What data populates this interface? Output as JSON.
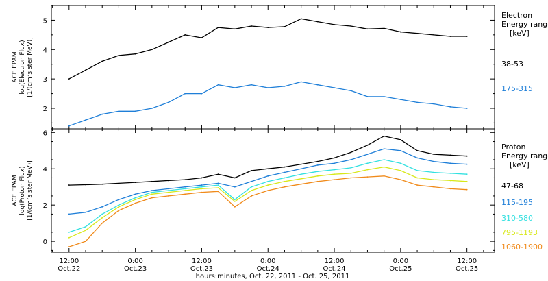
{
  "chart_data": [
    {
      "type": "line",
      "panel": "electron",
      "ylabel_lines": [
        "ACE EPAM",
        "log(Electron Flux)",
        "[1/(cm²s ster MeV)]"
      ],
      "ylim": [
        1.3,
        5.5
      ],
      "yticks": [
        2,
        3,
        4,
        5
      ],
      "legend_title": [
        "Electron",
        "Energy range",
        "[keV]"
      ],
      "x": [
        12,
        15,
        18,
        21,
        24,
        27,
        30,
        33,
        36,
        39,
        42,
        45,
        48,
        51,
        54,
        57,
        60,
        63,
        66,
        69,
        72,
        75,
        78,
        81,
        84
      ],
      "series": [
        {
          "name": "38-53",
          "color": "#000000",
          "values": [
            3.0,
            3.3,
            3.6,
            3.8,
            3.85,
            4.0,
            4.25,
            4.5,
            4.4,
            4.75,
            4.7,
            4.8,
            4.75,
            4.78,
            5.05,
            4.95,
            4.85,
            4.8,
            4.7,
            4.72,
            4.6,
            4.55,
            4.5,
            4.45,
            4.45
          ]
        },
        {
          "name": "175-315",
          "color": "#1f7fd8",
          "values": [
            1.4,
            1.6,
            1.8,
            1.9,
            1.9,
            2.0,
            2.2,
            2.5,
            2.5,
            2.8,
            2.7,
            2.8,
            2.7,
            2.75,
            2.9,
            2.8,
            2.7,
            2.6,
            2.4,
            2.4,
            2.3,
            2.2,
            2.15,
            2.05,
            2.0
          ]
        }
      ]
    },
    {
      "type": "line",
      "panel": "proton",
      "ylabel_lines": [
        "ACE EPAM",
        "log(Proton Flux)",
        "[1/(cm²s ster MeV)]"
      ],
      "ylim": [
        -0.6,
        6.2
      ],
      "yticks": [
        0,
        2,
        4,
        6
      ],
      "legend_title": [
        "Proton",
        "Energy range",
        "[keV]"
      ],
      "x": [
        12,
        15,
        18,
        21,
        24,
        27,
        30,
        33,
        36,
        39,
        42,
        45,
        48,
        51,
        54,
        57,
        60,
        63,
        66,
        69,
        72,
        75,
        78,
        81,
        84
      ],
      "series": [
        {
          "name": "47-68",
          "color": "#000000",
          "values": [
            3.1,
            3.12,
            3.15,
            3.2,
            3.25,
            3.3,
            3.35,
            3.4,
            3.5,
            3.7,
            3.5,
            3.9,
            4.0,
            4.1,
            4.25,
            4.4,
            4.6,
            4.9,
            5.3,
            5.8,
            5.6,
            5.0,
            4.8,
            4.75,
            4.7
          ]
        },
        {
          "name": "115-195",
          "color": "#1f7fd8",
          "values": [
            1.5,
            1.6,
            1.9,
            2.3,
            2.6,
            2.8,
            2.9,
            3.0,
            3.1,
            3.2,
            3.0,
            3.3,
            3.6,
            3.8,
            4.0,
            4.2,
            4.3,
            4.5,
            4.8,
            5.1,
            5.0,
            4.6,
            4.4,
            4.3,
            4.25
          ]
        },
        {
          "name": "310-580",
          "color": "#33e0e0",
          "values": [
            0.5,
            0.8,
            1.5,
            2.0,
            2.4,
            2.7,
            2.8,
            2.9,
            3.0,
            3.1,
            2.3,
            3.0,
            3.3,
            3.5,
            3.7,
            3.85,
            3.95,
            4.05,
            4.3,
            4.5,
            4.3,
            3.9,
            3.8,
            3.75,
            3.7
          ]
        },
        {
          "name": "795-1193",
          "color": "#d8e81a",
          "values": [
            0.2,
            0.6,
            1.3,
            1.9,
            2.3,
            2.6,
            2.7,
            2.8,
            2.9,
            2.95,
            2.2,
            2.8,
            3.1,
            3.3,
            3.45,
            3.6,
            3.7,
            3.75,
            3.95,
            4.1,
            3.9,
            3.5,
            3.4,
            3.35,
            3.3
          ]
        },
        {
          "name": "1060-1900",
          "color": "#f08a1a",
          "values": [
            -0.3,
            0.0,
            1.0,
            1.7,
            2.1,
            2.4,
            2.5,
            2.6,
            2.7,
            2.75,
            1.9,
            2.5,
            2.8,
            3.0,
            3.15,
            3.3,
            3.4,
            3.5,
            3.55,
            3.6,
            3.4,
            3.1,
            3.0,
            2.9,
            2.85
          ]
        }
      ]
    }
  ],
  "x_axis": {
    "xlim": [
      8.8,
      89
    ],
    "ticks": [
      {
        "x": 12,
        "time": "12:00",
        "date": "Oct.22"
      },
      {
        "x": 24,
        "time": "0:00",
        "date": "Oct.23"
      },
      {
        "x": 36,
        "time": "12:00",
        "date": "Oct.23"
      },
      {
        "x": 48,
        "time": "0:00",
        "date": "Oct.24"
      },
      {
        "x": 60,
        "time": "12:00",
        "date": "Oct.24"
      },
      {
        "x": 72,
        "time": "0:00",
        "date": "Oct.25"
      },
      {
        "x": 84,
        "time": "12:00",
        "date": "Oct.25"
      }
    ],
    "label": "hours:minutes, Oct. 22, 2011 - Oct. 25, 2011"
  }
}
